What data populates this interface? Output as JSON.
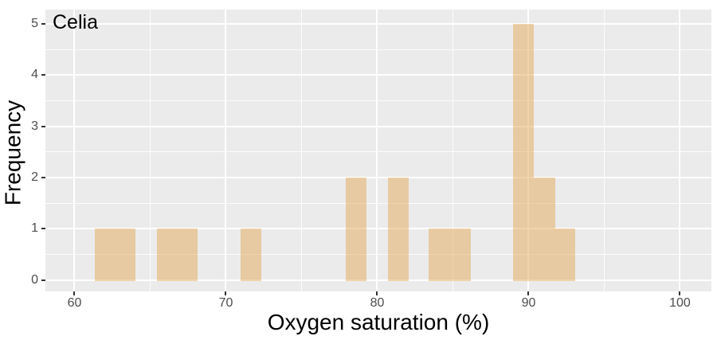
{
  "chart_data": {
    "type": "bar",
    "subtype": "histogram",
    "title": "Celia",
    "xlabel": "Oxygen saturation (%)",
    "ylabel": "Frequency",
    "x_range": [
      58.08,
      102.08
    ],
    "y_range": [
      -0.22,
      5.28
    ],
    "x_ticks": [
      60,
      70,
      80,
      90,
      100
    ],
    "x_minor_gridlines": [
      65,
      75,
      85,
      95
    ],
    "y_ticks": [
      0,
      1,
      2,
      3,
      4,
      5
    ],
    "y_minor_gridlines": [
      0.5,
      1.5,
      2.5,
      3.5,
      4.5
    ],
    "grid": "major-and-minor-white",
    "legend": false,
    "bars": [
      {
        "x0": 61.35,
        "x1": 64.05,
        "count": 1
      },
      {
        "x0": 65.45,
        "x1": 68.15,
        "count": 1
      },
      {
        "x0": 70.95,
        "x1": 72.35,
        "count": 1
      },
      {
        "x0": 77.9,
        "x1": 79.3,
        "count": 2
      },
      {
        "x0": 80.7,
        "x1": 82.1,
        "count": 2
      },
      {
        "x0": 83.4,
        "x1": 86.2,
        "count": 1
      },
      {
        "x0": 89.0,
        "x1": 90.33,
        "count": 5
      },
      {
        "x0": 90.33,
        "x1": 91.75,
        "count": 2
      },
      {
        "x0": 91.75,
        "x1": 93.1,
        "count": 1
      }
    ],
    "colors": {
      "outer_bg": "#ffffff",
      "panel_bg": "#ebebeb",
      "bar_fill": "rgba(228,169,88,0.5)",
      "grid_major": "#ffffff",
      "grid_minor": "rgba(255,255,255,0.85)",
      "tick_mark": "#333333",
      "tick_label": "#4d4d4d",
      "text": "#000000"
    }
  }
}
